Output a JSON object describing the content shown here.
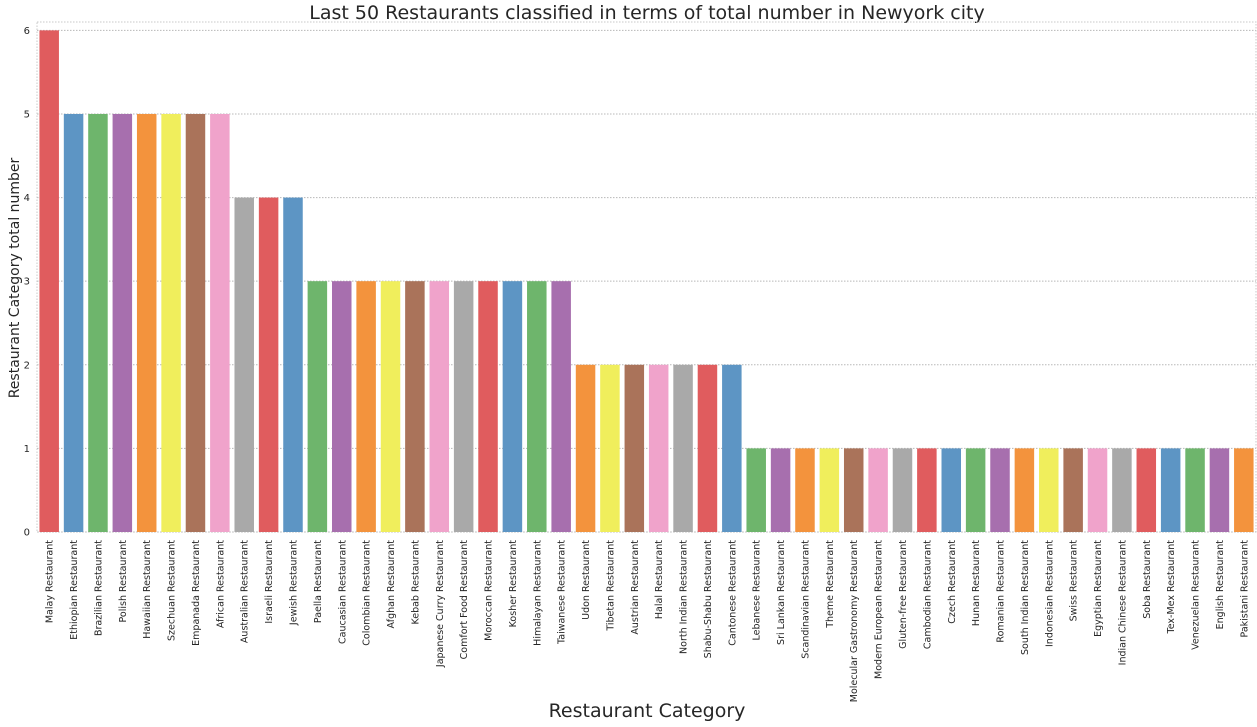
{
  "chart_data": {
    "type": "bar",
    "title": "Last 50 Restaurants classified in terms of total number in Newyork city",
    "xlabel": "Restaurant Category",
    "ylabel": "Restaurant  Category total number",
    "ylim": [
      0,
      6.1
    ],
    "yticks": [
      0,
      1,
      2,
      3,
      4,
      5,
      6
    ],
    "grid": true,
    "categories": [
      "Malay Restaurant",
      "Ethiopian Restaurant",
      "Brazilian Restaurant",
      "Polish Restaurant",
      "Hawaiian Restaurant",
      "Szechuan Restaurant",
      "Empanada Restaurant",
      "African Restaurant",
      "Australian Restaurant",
      "Israeli Restaurant",
      "Jewish Restaurant",
      "Paella Restaurant",
      "Caucasian Restaurant",
      "Colombian Restaurant",
      "Afghan Restaurant",
      "Kebab Restaurant",
      "Japanese Curry Restaurant",
      "Comfort Food Restaurant",
      "Moroccan Restaurant",
      "Kosher Restaurant",
      "Himalayan Restaurant",
      "Taiwanese Restaurant",
      "Udon Restaurant",
      "Tibetan Restaurant",
      "Austrian Restaurant",
      "Halal Restaurant",
      "North Indian Restaurant",
      "Shabu-Shabu Restaurant",
      "Cantonese Restaurant",
      "Lebanese Restaurant",
      "Sri Lankan Restaurant",
      "Scandinavian Restaurant",
      "Theme Restaurant",
      "Molecular Gastronomy Restaurant",
      "Modern European Restaurant",
      "Gluten-free Restaurant",
      "Cambodian Restaurant",
      "Czech Restaurant",
      "Hunan Restaurant",
      "Romanian Restaurant",
      "South Indian Restaurant",
      "Indonesian Restaurant",
      "Swiss Restaurant",
      "Egyptian Restaurant",
      "Indian Chinese Restaurant",
      "Soba Restaurant",
      "Tex-Mex Restaurant",
      "Venezuelan Restaurant",
      "English Restaurant",
      "Pakistani Restaurant"
    ],
    "values": [
      6,
      5,
      5,
      5,
      5,
      5,
      5,
      5,
      4,
      4,
      4,
      3,
      3,
      3,
      3,
      3,
      3,
      3,
      3,
      3,
      3,
      3,
      2,
      2,
      2,
      2,
      2,
      2,
      2,
      1,
      1,
      1,
      1,
      1,
      1,
      1,
      1,
      1,
      1,
      1,
      1,
      1,
      1,
      1,
      1,
      1,
      1,
      1,
      1,
      1
    ],
    "palette": [
      "#e05c5e",
      "#5d95c4",
      "#6eb56c",
      "#a76fae",
      "#f3933d",
      "#f0ee5c",
      "#aa735a",
      "#f0a3cb",
      "#a9a9a9"
    ]
  }
}
